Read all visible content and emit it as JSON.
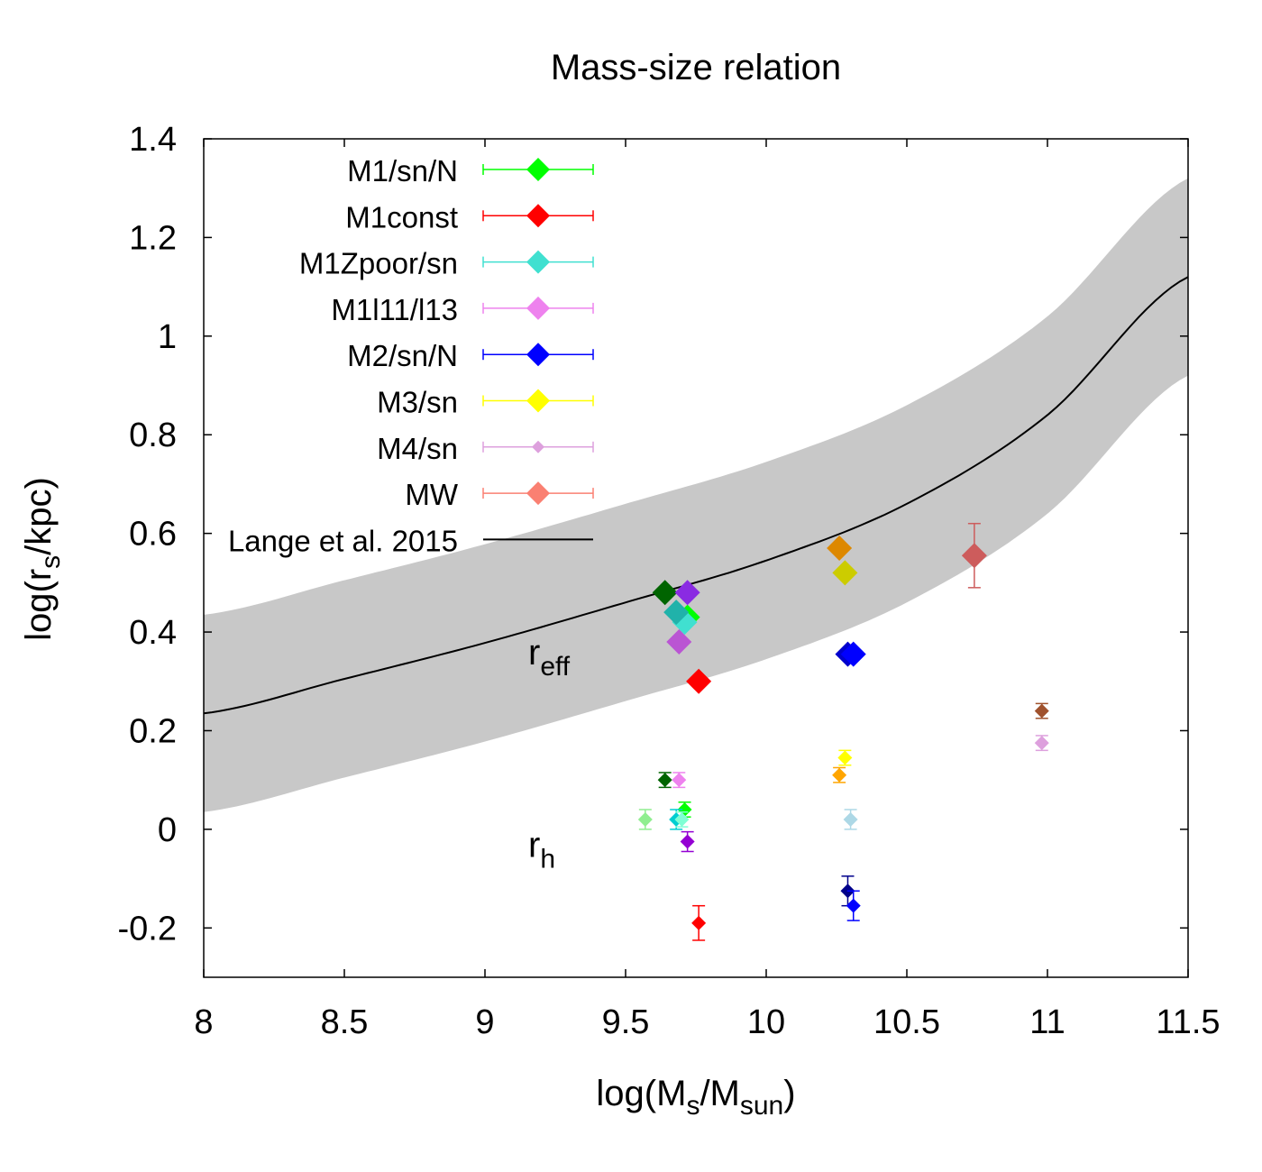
{
  "chart_data": {
    "type": "scatter",
    "title": "Mass-size relation",
    "xlabel": {
      "base": "log(M",
      "sub": "s",
      "mid": "/M",
      "sub2": "sun",
      "end": ")"
    },
    "ylabel": {
      "base": "log(r",
      "sub": "s",
      "end": "/kpc)"
    },
    "xlim": [
      8,
      11.5
    ],
    "ylim": [
      -0.3,
      1.4
    ],
    "xticks": [
      {
        "value": 8,
        "label": "8"
      },
      {
        "value": 8.5,
        "label": "8.5"
      },
      {
        "value": 9,
        "label": "9"
      },
      {
        "value": 9.5,
        "label": "9.5"
      },
      {
        "value": 10,
        "label": "10"
      },
      {
        "value": 10.5,
        "label": "10.5"
      },
      {
        "value": 11,
        "label": "11"
      },
      {
        "value": 11.5,
        "label": "11.5"
      }
    ],
    "yticks": [
      {
        "value": -0.2,
        "label": "-0.2"
      },
      {
        "value": 0,
        "label": "0"
      },
      {
        "value": 0.2,
        "label": "0.2"
      },
      {
        "value": 0.4,
        "label": "0.4"
      },
      {
        "value": 0.6,
        "label": "0.6"
      },
      {
        "value": 0.8,
        "label": "0.8"
      },
      {
        "value": 1,
        "label": "1"
      },
      {
        "value": 1.2,
        "label": "1.2"
      },
      {
        "value": 1.4,
        "label": "1.4"
      }
    ],
    "annotations": [
      {
        "id": "reff",
        "base": "r",
        "sub": "eff",
        "x": 9.25,
        "y": 0.36
      },
      {
        "id": "rh",
        "base": "r",
        "sub": "h",
        "x": 9.25,
        "y": -0.03
      }
    ],
    "legend": {
      "placement": "top-left",
      "entries": [
        {
          "label": "M1/sn/N",
          "color": "#00ff00",
          "marker": "diamond"
        },
        {
          "label": "M1const",
          "color": "#ff0000",
          "marker": "diamond"
        },
        {
          "label": "M1Zpoor/sn",
          "color": "#40e0d0",
          "marker": "diamond"
        },
        {
          "label": "M1l11/l13",
          "color": "#ee82ee",
          "marker": "diamond"
        },
        {
          "label": "M2/sn/N",
          "color": "#0000ff",
          "marker": "diamond"
        },
        {
          "label": "M3/sn",
          "color": "#ffff00",
          "marker": "diamond"
        },
        {
          "label": "M4/sn",
          "color": "#dda0dd",
          "marker": "diamond-small"
        },
        {
          "label": "MW",
          "color": "#fa8072",
          "marker": "diamond"
        },
        {
          "label": "Lange et al. 2015",
          "color": "#000000",
          "marker": "line"
        }
      ]
    },
    "relation": {
      "name": "Lange et al. 2015",
      "band_color": "#c8c8c8",
      "line_color": "#000000",
      "x": [
        8.0,
        8.5,
        9.0,
        9.5,
        10.0,
        10.5,
        11.0,
        11.5
      ],
      "y": [
        0.235,
        0.305,
        0.378,
        0.46,
        0.545,
        0.66,
        0.84,
        1.12
      ],
      "lower": [
        0.035,
        0.105,
        0.178,
        0.26,
        0.345,
        0.46,
        0.64,
        0.92
      ],
      "upper": [
        0.435,
        0.505,
        0.578,
        0.66,
        0.745,
        0.86,
        1.04,
        1.32
      ]
    },
    "series": [
      {
        "name": "r_eff points",
        "size": "large",
        "points": [
          {
            "x": 9.72,
            "y": 0.43,
            "color": "#00ff00"
          },
          {
            "x": 9.76,
            "y": 0.3,
            "color": "#ff0000"
          },
          {
            "x": 9.71,
            "y": 0.42,
            "color": "#40e0d0"
          },
          {
            "x": 9.68,
            "y": 0.44,
            "color": "#20b2aa"
          },
          {
            "x": 9.69,
            "y": 0.38,
            "color": "#ba55d3"
          },
          {
            "x": 9.64,
            "y": 0.48,
            "color": "#006400"
          },
          {
            "x": 9.72,
            "y": 0.48,
            "color": "#8a2be2"
          },
          {
            "x": 10.29,
            "y": 0.355,
            "color": "#0000cd"
          },
          {
            "x": 10.31,
            "y": 0.355,
            "color": "#0000ff"
          },
          {
            "x": 10.26,
            "y": 0.57,
            "color": "#dd8800"
          },
          {
            "x": 10.28,
            "y": 0.52,
            "color": "#cccc00"
          },
          {
            "x": 10.74,
            "y": 0.555,
            "color": "#cd5c5c",
            "err": 0.065
          }
        ]
      },
      {
        "name": "r_h points",
        "size": "small",
        "points": [
          {
            "x": 9.64,
            "y": 0.1,
            "color": "#006400",
            "err": 0.015
          },
          {
            "x": 9.69,
            "y": 0.1,
            "color": "#ee82ee",
            "err": 0.015
          },
          {
            "x": 9.71,
            "y": 0.04,
            "color": "#00ff00",
            "err": 0.015
          },
          {
            "x": 9.57,
            "y": 0.02,
            "color": "#90ee90",
            "err": 0.02
          },
          {
            "x": 9.68,
            "y": 0.02,
            "color": "#00ced1",
            "err": 0.02
          },
          {
            "x": 9.7,
            "y": 0.02,
            "color": "#7fffd4",
            "err": 0.015
          },
          {
            "x": 9.72,
            "y": -0.025,
            "color": "#9400d3",
            "err": 0.02
          },
          {
            "x": 9.76,
            "y": -0.19,
            "color": "#ff0000",
            "err": 0.035
          },
          {
            "x": 10.28,
            "y": 0.145,
            "color": "#ffff00",
            "err": 0.015
          },
          {
            "x": 10.26,
            "y": 0.11,
            "color": "#ffa500",
            "err": 0.015
          },
          {
            "x": 10.3,
            "y": 0.02,
            "color": "#add8e6",
            "err": 0.02
          },
          {
            "x": 10.29,
            "y": -0.125,
            "color": "#00008b",
            "err": 0.03
          },
          {
            "x": 10.31,
            "y": -0.155,
            "color": "#0000ff",
            "err": 0.03
          },
          {
            "x": 10.98,
            "y": 0.24,
            "color": "#a0522d",
            "err": 0.015
          },
          {
            "x": 10.98,
            "y": 0.175,
            "color": "#dda0dd",
            "err": 0.015
          }
        ]
      }
    ]
  }
}
